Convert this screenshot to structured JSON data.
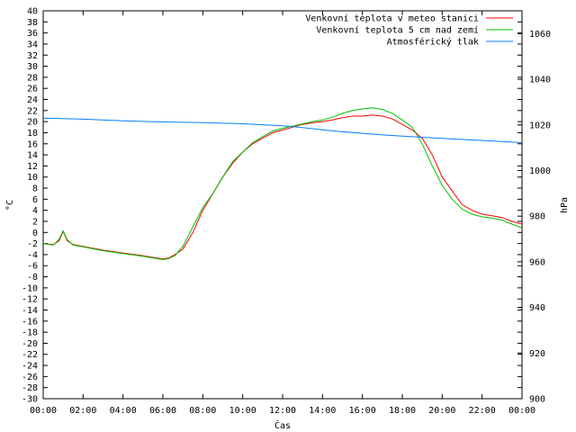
{
  "chart_data": {
    "type": "line",
    "title": "",
    "xlabel": "Čas",
    "ylabel": "°C",
    "y2label": "hPa",
    "xlim": [
      0,
      24
    ],
    "ylim": [
      -30,
      40
    ],
    "y2lim": [
      900,
      1070
    ],
    "grid": false,
    "legend_position": "top-right",
    "x_tick_labels": [
      "00:00",
      "02:00",
      "04:00",
      "06:00",
      "08:00",
      "10:00",
      "12:00",
      "14:00",
      "16:00",
      "18:00",
      "20:00",
      "22:00",
      "00:00"
    ],
    "y_ticks": [
      -30,
      -28,
      -26,
      -24,
      -22,
      -20,
      -18,
      -16,
      -14,
      -12,
      -10,
      -8,
      -6,
      -4,
      -2,
      0,
      2,
      4,
      6,
      8,
      10,
      12,
      14,
      16,
      18,
      20,
      22,
      24,
      26,
      28,
      30,
      32,
      34,
      36,
      38,
      40
    ],
    "y2_ticks": [
      900,
      920,
      940,
      960,
      980,
      1000,
      1020,
      1040,
      1060
    ],
    "series": [
      {
        "name": "Venkovní teplota v meteo stanici",
        "color": "#ff0000",
        "axis": "y",
        "x": [
          0,
          0.5,
          0.8,
          1.0,
          1.2,
          1.5,
          2,
          3,
          4,
          5,
          5.5,
          6,
          6.3,
          6.6,
          7,
          7.5,
          8,
          8.5,
          9,
          9.5,
          10,
          10.5,
          11,
          11.5,
          12,
          12.5,
          13,
          13.5,
          14,
          14.5,
          15,
          15.5,
          16,
          16.5,
          17,
          17.5,
          18,
          18.5,
          19,
          19.5,
          20,
          20.5,
          21,
          21.5,
          22,
          22.5,
          23,
          23.5,
          24
        ],
        "y": [
          -2,
          -2.2,
          -1.5,
          0.2,
          -1.5,
          -2.2,
          -2.5,
          -3.2,
          -3.7,
          -4.2,
          -4.5,
          -4.8,
          -4.6,
          -4,
          -3,
          0,
          4,
          7,
          10,
          12.5,
          14.5,
          16,
          17,
          18,
          18.5,
          19,
          19.5,
          19.8,
          20,
          20.3,
          20.7,
          21,
          21,
          21.2,
          21,
          20.5,
          19.5,
          18.5,
          17,
          14,
          10,
          7.5,
          5,
          4,
          3.3,
          3,
          2.7,
          2,
          1.5
        ]
      },
      {
        "name": "Venkovní teplota 5 cm nad zemí",
        "color": "#00c000",
        "axis": "y",
        "x": [
          0,
          0.5,
          0.8,
          1.0,
          1.2,
          1.5,
          2,
          3,
          4,
          5,
          5.5,
          6,
          6.3,
          6.6,
          7,
          7.5,
          8,
          8.5,
          9,
          9.5,
          10,
          10.5,
          11,
          11.5,
          12,
          12.5,
          13,
          13.5,
          14,
          14.5,
          15,
          15.5,
          16,
          16.5,
          17,
          17.5,
          18,
          18.5,
          19,
          19.5,
          20,
          20.5,
          21,
          21.5,
          22,
          22.5,
          23,
          23.5,
          24
        ],
        "y": [
          -2,
          -2.3,
          -1.2,
          0.3,
          -1.3,
          -2.3,
          -2.6,
          -3.3,
          -3.8,
          -4.3,
          -4.6,
          -4.9,
          -4.7,
          -4.2,
          -2.5,
          1,
          4.5,
          7,
          10,
          12.8,
          14.5,
          16.2,
          17.3,
          18.3,
          18.8,
          19.2,
          19.6,
          20,
          20.3,
          20.8,
          21.5,
          22,
          22.3,
          22.5,
          22.2,
          21.5,
          20.3,
          19,
          16,
          12,
          8.5,
          6,
          4.2,
          3.3,
          2.8,
          2.6,
          2.2,
          1.5,
          0.8
        ]
      },
      {
        "name": "Atmosférický tlak",
        "color": "#0080ff",
        "axis": "y2",
        "x": [
          0,
          2,
          4,
          6,
          8,
          10,
          12,
          13,
          14,
          15,
          16,
          17,
          18,
          19,
          20,
          21,
          22,
          23,
          24
        ],
        "y": [
          1023,
          1022.5,
          1021.8,
          1021.3,
          1021,
          1020.5,
          1019.6,
          1018.8,
          1017.8,
          1017,
          1016.3,
          1015.6,
          1015.1,
          1014.6,
          1014.1,
          1013.6,
          1013.2,
          1012.7,
          1012.2
        ]
      }
    ]
  }
}
